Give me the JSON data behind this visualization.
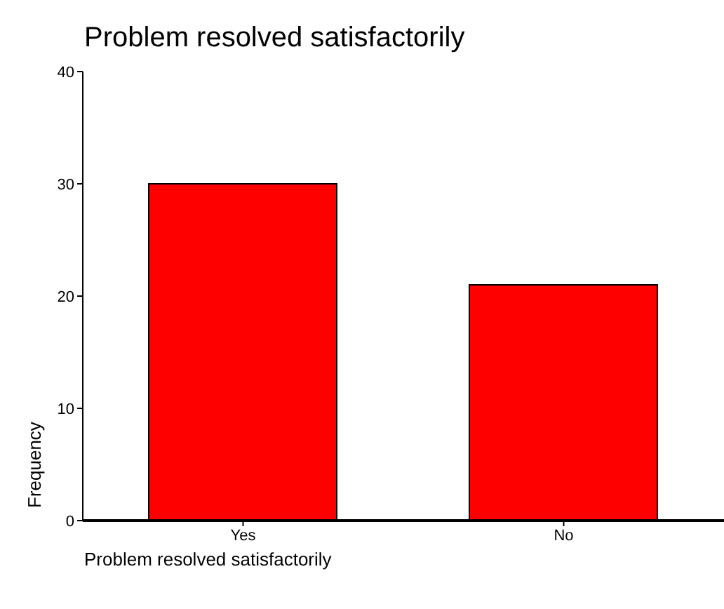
{
  "chart_data": {
    "type": "bar",
    "title": "Problem resolved satisfactorily",
    "xlabel": "Problem resolved satisfactorily",
    "ylabel": "Frequency",
    "categories": [
      "Yes",
      "No"
    ],
    "values": [
      30,
      21
    ],
    "color": "#ff0000",
    "ylim": [
      0,
      40
    ],
    "yticks": [
      0,
      10,
      20,
      30,
      40
    ]
  }
}
